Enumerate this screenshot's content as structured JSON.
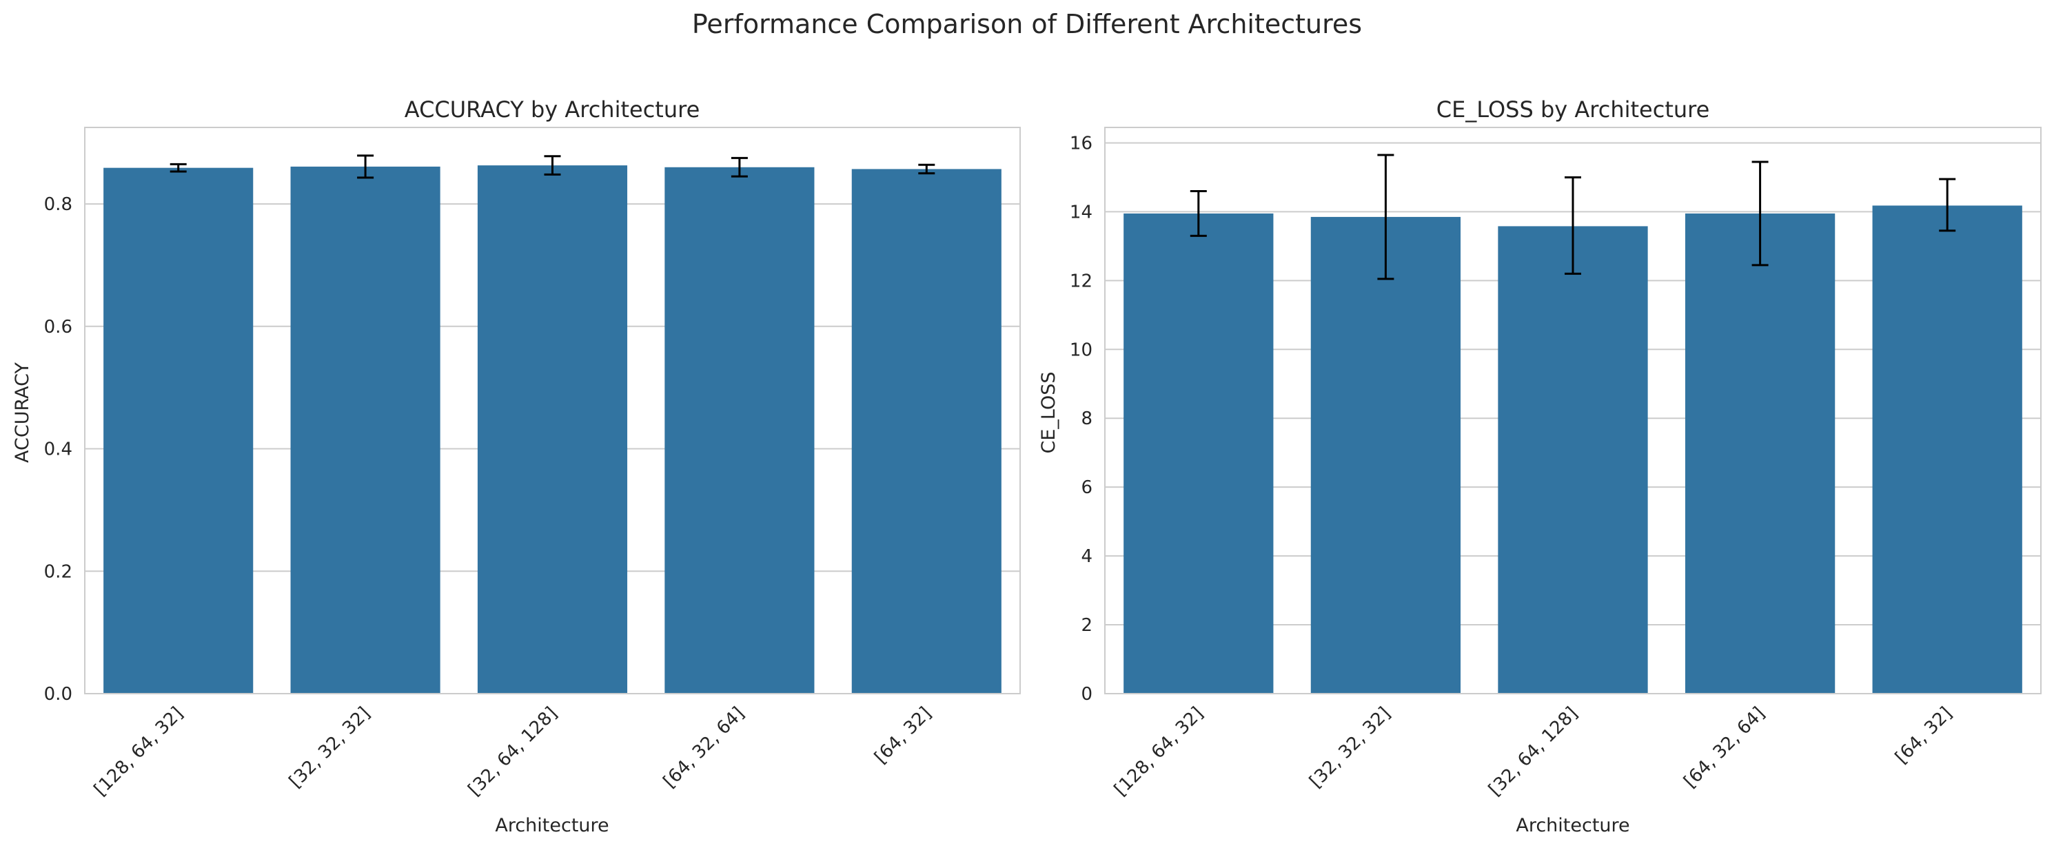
{
  "suptitle": "Performance Comparison of Different Architectures",
  "style": {
    "bar_color": "#3274a1",
    "error_color": "#000000",
    "grid_color": "#cccccc",
    "spine_color": "#cccccc",
    "text_color": "#262626"
  },
  "chart_data": [
    {
      "type": "bar",
      "title": "ACCURACY by Architecture",
      "xlabel": "Architecture",
      "ylabel": "ACCURACY",
      "categories": [
        "[128, 64, 32]",
        "[32, 32, 32]",
        "[32, 64, 128]",
        "[64, 32, 64]",
        "[64, 32]"
      ],
      "values": [
        0.859,
        0.861,
        0.863,
        0.86,
        0.857
      ],
      "error_low": [
        0.853,
        0.843,
        0.848,
        0.845,
        0.85
      ],
      "error_high": [
        0.865,
        0.879,
        0.878,
        0.875,
        0.864
      ],
      "ylim": [
        0,
        0.925
      ],
      "yticks": [
        0.0,
        0.2,
        0.4,
        0.6,
        0.8
      ],
      "ytick_labels": [
        "0.0",
        "0.2",
        "0.4",
        "0.6",
        "0.8"
      ],
      "grid": true
    },
    {
      "type": "bar",
      "title": "CE_LOSS by Architecture",
      "xlabel": "Architecture",
      "ylabel": "CE_LOSS",
      "categories": [
        "[128, 64, 32]",
        "[32, 32, 32]",
        "[32, 64, 128]",
        "[64, 32, 64]",
        "[64, 32]"
      ],
      "values": [
        13.95,
        13.85,
        13.58,
        13.95,
        14.18
      ],
      "error_low": [
        13.3,
        12.05,
        12.2,
        12.45,
        13.45
      ],
      "error_high": [
        14.6,
        15.65,
        15.0,
        15.45,
        14.95
      ],
      "ylim": [
        0,
        16.45
      ],
      "yticks": [
        0,
        2,
        4,
        6,
        8,
        10,
        12,
        14,
        16
      ],
      "ytick_labels": [
        "0",
        "2",
        "4",
        "6",
        "8",
        "10",
        "12",
        "14",
        "16"
      ],
      "grid": true
    }
  ]
}
